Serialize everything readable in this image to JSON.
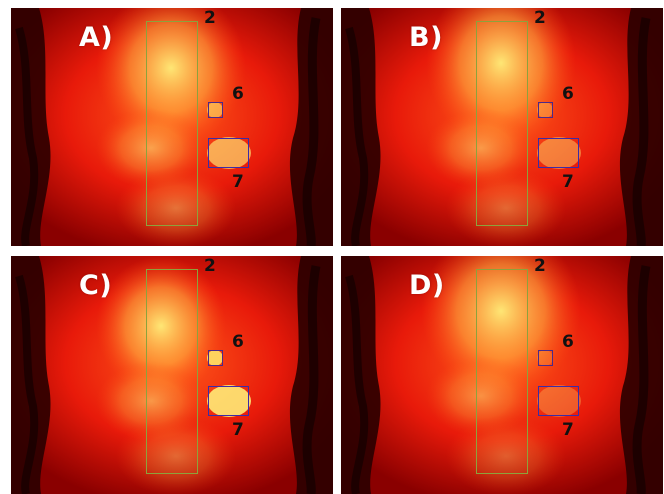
{
  "panels": [
    {
      "label": "A)",
      "regions": {
        "r2": "2",
        "r6": "6",
        "r7": "7"
      },
      "hotspot_level": 0.55
    },
    {
      "label": "B)",
      "regions": {
        "r2": "2",
        "r6": "6",
        "r7": "7"
      },
      "hotspot_level": 0.25
    },
    {
      "label": "C)",
      "regions": {
        "r2": "2",
        "r6": "6",
        "r7": "7"
      },
      "hotspot_level": 0.9
    },
    {
      "label": "D)",
      "regions": {
        "r2": "2",
        "r6": "6",
        "r7": "7"
      },
      "hotspot_level": 0.05
    }
  ],
  "colors": {
    "roi_2_border": "#8da23c",
    "roi_6_border": "#4b2a8a",
    "roi_7_border": "#3b2ca8",
    "panel_label_color": "#ffffff",
    "region_label_color": "#111111"
  }
}
